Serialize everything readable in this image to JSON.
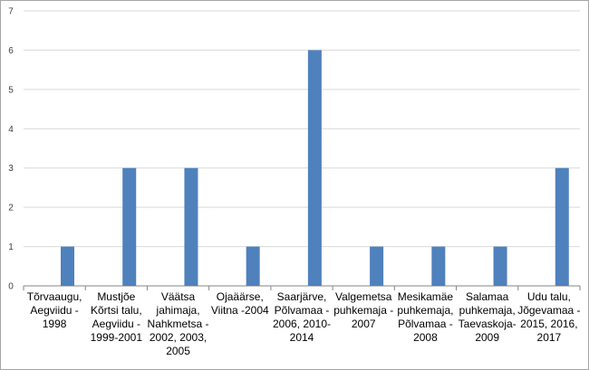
{
  "chart_data": {
    "type": "bar",
    "title": "",
    "xlabel": "",
    "ylabel": "",
    "categories": [
      [
        "Tõrvaaugu,",
        "Aegviidu -",
        "1998"
      ],
      [
        "Mustjõe",
        "Kõrtsi talu,",
        "Aegviidu -",
        "1999-2001"
      ],
      [
        "Väätsa",
        "jahimaja,",
        "Nahkmetsa -",
        "2002, 2003,",
        "2005"
      ],
      [
        "Ojaäärse,",
        "Viitna -2004"
      ],
      [
        "Saarjärve,",
        "Põlvamaa -",
        "2006, 2010-",
        "2014"
      ],
      [
        "Valgemetsa",
        "puhkemaja -",
        "2007"
      ],
      [
        "Mesikamäe",
        "puhkemaja,",
        "Põlvamaa -",
        "2008"
      ],
      [
        "Salamaa",
        "puhkemaja,",
        "Taevaskoja-",
        "2009"
      ],
      [
        "Udu talu,",
        "Jõgevamaa -",
        "2015, 2016,",
        "2017"
      ]
    ],
    "values": [
      1,
      3,
      3,
      1,
      6,
      1,
      1,
      1,
      3
    ],
    "ylim": [
      0,
      7
    ],
    "yticks": [
      "0",
      "1",
      "2",
      "3",
      "4",
      "5",
      "6",
      "7"
    ],
    "grid": true,
    "legend": "none",
    "bar_color": "#4f81bd",
    "grid_color": "#d9d9d9",
    "axis_color": "#868686"
  }
}
